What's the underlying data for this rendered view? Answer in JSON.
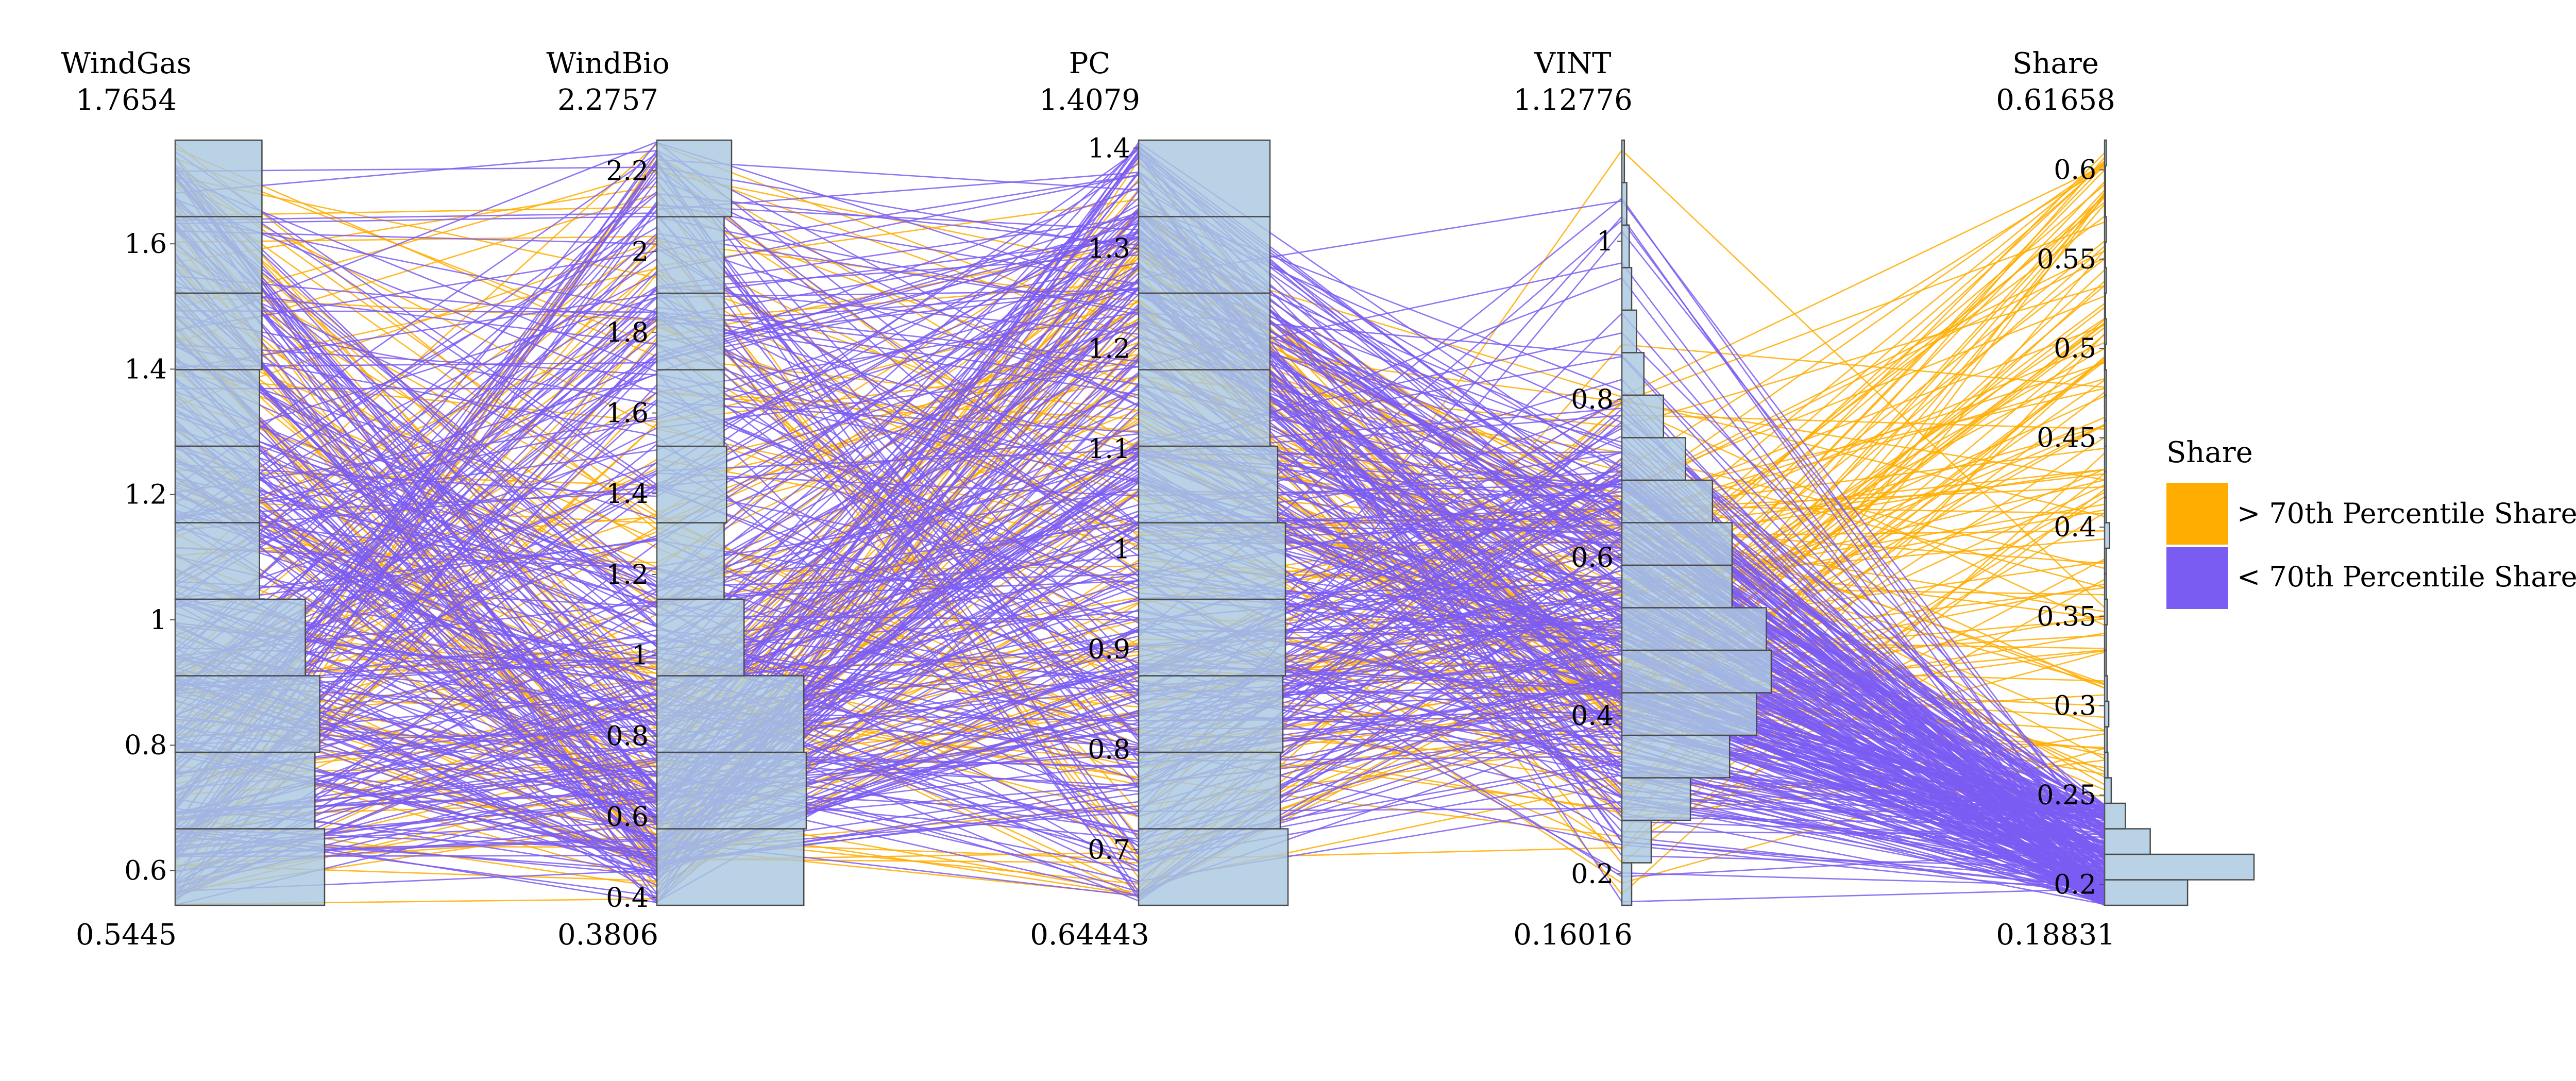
{
  "chart_data": {
    "type": "parallel_coordinates",
    "title": "",
    "axes": [
      {
        "name": "WindGas",
        "max_label": "1.7654",
        "min_label": "0.5445",
        "range": [
          0.5445,
          1.7654
        ],
        "ticks": [
          {
            "value": 0.6,
            "label": "0.6"
          },
          {
            "value": 0.8,
            "label": "0.8"
          },
          {
            "value": 1.0,
            "label": "1"
          },
          {
            "value": 1.2,
            "label": "1.2"
          },
          {
            "value": 1.4,
            "label": "1.4"
          },
          {
            "value": 1.6,
            "label": "1.6"
          }
        ],
        "histogram": [
          {
            "lo": 0.5445,
            "hi": 0.6666,
            "count": 62
          },
          {
            "lo": 0.6666,
            "hi": 0.7887,
            "count": 58
          },
          {
            "lo": 0.7887,
            "hi": 0.9108,
            "count": 60
          },
          {
            "lo": 0.9108,
            "hi": 1.0329,
            "count": 54
          },
          {
            "lo": 1.0329,
            "hi": 1.155,
            "count": 35
          },
          {
            "lo": 1.155,
            "hi": 1.2771,
            "count": 35
          },
          {
            "lo": 1.2771,
            "hi": 1.3992,
            "count": 35
          },
          {
            "lo": 1.3992,
            "hi": 1.5213,
            "count": 36
          },
          {
            "lo": 1.5213,
            "hi": 1.6434,
            "count": 36
          },
          {
            "lo": 1.6434,
            "hi": 1.7654,
            "count": 36
          }
        ]
      },
      {
        "name": "WindBio",
        "max_label": "2.2757",
        "min_label": "0.3806",
        "range": [
          0.3806,
          2.2757
        ],
        "ticks": [
          {
            "value": 0.4,
            "label": "0.4"
          },
          {
            "value": 0.6,
            "label": "0.6"
          },
          {
            "value": 0.8,
            "label": "0.8"
          },
          {
            "value": 1.0,
            "label": "1"
          },
          {
            "value": 1.2,
            "label": "1.2"
          },
          {
            "value": 1.4,
            "label": "1.4"
          },
          {
            "value": 1.6,
            "label": "1.6"
          },
          {
            "value": 1.8,
            "label": "1.8"
          },
          {
            "value": 2.0,
            "label": "2"
          },
          {
            "value": 2.2,
            "label": "2.2"
          }
        ],
        "histogram": [
          {
            "lo": 0.3806,
            "hi": 0.5701,
            "count": 59
          },
          {
            "lo": 0.5701,
            "hi": 0.7596,
            "count": 60
          },
          {
            "lo": 0.7596,
            "hi": 0.9491,
            "count": 59
          },
          {
            "lo": 0.9491,
            "hi": 1.1386,
            "count": 35
          },
          {
            "lo": 1.1386,
            "hi": 1.3281,
            "count": 27
          },
          {
            "lo": 1.3281,
            "hi": 1.5176,
            "count": 28
          },
          {
            "lo": 1.5176,
            "hi": 1.7071,
            "count": 27
          },
          {
            "lo": 1.7071,
            "hi": 1.8966,
            "count": 27
          },
          {
            "lo": 1.8966,
            "hi": 2.0861,
            "count": 27
          },
          {
            "lo": 2.0861,
            "hi": 2.2757,
            "count": 30
          }
        ]
      },
      {
        "name": "PC",
        "max_label": "1.4079",
        "min_label": "0.64443",
        "range": [
          0.64443,
          1.4079
        ],
        "ticks": [
          {
            "value": 0.7,
            "label": "0.7"
          },
          {
            "value": 0.8,
            "label": "0.8"
          },
          {
            "value": 0.9,
            "label": "0.9"
          },
          {
            "value": 1.0,
            "label": "1"
          },
          {
            "value": 1.1,
            "label": "1.1"
          },
          {
            "value": 1.2,
            "label": "1.2"
          },
          {
            "value": 1.3,
            "label": "1.3"
          },
          {
            "value": 1.4,
            "label": "1.4"
          }
        ],
        "histogram": [
          {
            "lo": 0.64443,
            "hi": 0.72078,
            "count": 58
          },
          {
            "lo": 0.72078,
            "hi": 0.79713,
            "count": 55
          },
          {
            "lo": 0.79713,
            "hi": 0.87348,
            "count": 56
          },
          {
            "lo": 0.87348,
            "hi": 0.94983,
            "count": 57
          },
          {
            "lo": 0.94983,
            "hi": 1.02618,
            "count": 57
          },
          {
            "lo": 1.02618,
            "hi": 1.10253,
            "count": 54
          },
          {
            "lo": 1.10253,
            "hi": 1.17888,
            "count": 51
          },
          {
            "lo": 1.17888,
            "hi": 1.25523,
            "count": 51
          },
          {
            "lo": 1.25523,
            "hi": 1.33158,
            "count": 51
          },
          {
            "lo": 1.33158,
            "hi": 1.4079,
            "count": 51
          }
        ]
      },
      {
        "name": "VINT",
        "max_label": "1.12776",
        "min_label": "0.16016",
        "range": [
          0.16016,
          1.12776
        ],
        "ticks": [
          {
            "value": 0.2,
            "label": "0.2"
          },
          {
            "value": 0.4,
            "label": "0.4"
          },
          {
            "value": 0.6,
            "label": "0.6"
          },
          {
            "value": 0.8,
            "label": "0.8"
          },
          {
            "value": 1.0,
            "label": "1"
          }
        ],
        "histogram": [
          {
            "lo": 0.16016,
            "hi": 0.21392,
            "count": 4
          },
          {
            "lo": 0.21392,
            "hi": 0.26768,
            "count": 12
          },
          {
            "lo": 0.26768,
            "hi": 0.32144,
            "count": 28
          },
          {
            "lo": 0.32144,
            "hi": 0.3752,
            "count": 44
          },
          {
            "lo": 0.3752,
            "hi": 0.42896,
            "count": 55
          },
          {
            "lo": 0.42896,
            "hi": 0.48272,
            "count": 61
          },
          {
            "lo": 0.48272,
            "hi": 0.53648,
            "count": 59
          },
          {
            "lo": 0.53648,
            "hi": 0.59024,
            "count": 45
          },
          {
            "lo": 0.59024,
            "hi": 0.644,
            "count": 45
          },
          {
            "lo": 0.644,
            "hi": 0.69776,
            "count": 37
          },
          {
            "lo": 0.69776,
            "hi": 0.75152,
            "count": 26
          },
          {
            "lo": 0.75152,
            "hi": 0.80528,
            "count": 17
          },
          {
            "lo": 0.80528,
            "hi": 0.85904,
            "count": 9
          },
          {
            "lo": 0.85904,
            "hi": 0.9128,
            "count": 6
          },
          {
            "lo": 0.9128,
            "hi": 0.96656,
            "count": 4
          },
          {
            "lo": 0.96656,
            "hi": 1.02032,
            "count": 3
          },
          {
            "lo": 1.02032,
            "hi": 1.07408,
            "count": 2
          },
          {
            "lo": 1.07408,
            "hi": 1.12776,
            "count": 1
          }
        ]
      },
      {
        "name": "Share",
        "max_label": "0.61658",
        "min_label": "0.18831",
        "range": [
          0.18831,
          0.61658
        ],
        "ticks": [
          {
            "value": 0.2,
            "label": "0.2"
          },
          {
            "value": 0.25,
            "label": "0.25"
          },
          {
            "value": 0.3,
            "label": "0.3"
          },
          {
            "value": 0.35,
            "label": "0.35"
          },
          {
            "value": 0.4,
            "label": "0.4"
          },
          {
            "value": 0.45,
            "label": "0.45"
          },
          {
            "value": 0.5,
            "label": "0.5"
          },
          {
            "value": 0.55,
            "label": "0.55"
          },
          {
            "value": 0.6,
            "label": "0.6"
          }
        ],
        "histogram": [
          {
            "lo": 0.18831,
            "hi": 0.20259,
            "count": 100
          },
          {
            "lo": 0.20259,
            "hi": 0.21686,
            "count": 180
          },
          {
            "lo": 0.21686,
            "hi": 0.23114,
            "count": 55
          },
          {
            "lo": 0.23114,
            "hi": 0.24541,
            "count": 25
          },
          {
            "lo": 0.24541,
            "hi": 0.25969,
            "count": 8
          },
          {
            "lo": 0.25969,
            "hi": 0.27396,
            "count": 4
          },
          {
            "lo": 0.27396,
            "hi": 0.28824,
            "count": 3
          },
          {
            "lo": 0.28824,
            "hi": 0.30251,
            "count": 5
          },
          {
            "lo": 0.30251,
            "hi": 0.31679,
            "count": 3
          },
          {
            "lo": 0.31679,
            "hi": 0.33106,
            "count": 2
          },
          {
            "lo": 0.33106,
            "hi": 0.34534,
            "count": 2
          },
          {
            "lo": 0.34534,
            "hi": 0.35961,
            "count": 3
          },
          {
            "lo": 0.35961,
            "hi": 0.37389,
            "count": 2
          },
          {
            "lo": 0.37389,
            "hi": 0.38816,
            "count": 2
          },
          {
            "lo": 0.38816,
            "hi": 0.40244,
            "count": 6
          },
          {
            "lo": 0.40244,
            "hi": 0.41671,
            "count": 2
          },
          {
            "lo": 0.41671,
            "hi": 0.43099,
            "count": 2
          },
          {
            "lo": 0.43099,
            "hi": 0.44526,
            "count": 2
          },
          {
            "lo": 0.44526,
            "hi": 0.45954,
            "count": 2
          },
          {
            "lo": 0.45954,
            "hi": 0.47381,
            "count": 2
          },
          {
            "lo": 0.47381,
            "hi": 0.48809,
            "count": 2
          },
          {
            "lo": 0.48809,
            "hi": 0.50236,
            "count": 1
          },
          {
            "lo": 0.50236,
            "hi": 0.51664,
            "count": 2
          },
          {
            "lo": 0.51664,
            "hi": 0.53091,
            "count": 1
          },
          {
            "lo": 0.53091,
            "hi": 0.54519,
            "count": 2
          },
          {
            "lo": 0.54519,
            "hi": 0.55946,
            "count": 1
          },
          {
            "lo": 0.55946,
            "hi": 0.57374,
            "count": 2
          },
          {
            "lo": 0.57374,
            "hi": 0.58801,
            "count": 1
          },
          {
            "lo": 0.58801,
            "hi": 0.60229,
            "count": 1
          },
          {
            "lo": 0.60229,
            "hi": 0.61658,
            "count": 2
          }
        ]
      }
    ],
    "series": [
      {
        "name": "> 70th Percentile Share",
        "color": "#FFAD00",
        "line_count": 130
      },
      {
        "name": "< 70th Percentile Share",
        "color": "#7B5CF2",
        "line_count": 300
      }
    ],
    "histogram_fill": "#A9C8DF",
    "histogram_stroke": "#4A4A4A",
    "legend": {
      "title": "Share",
      "position": "right",
      "entries": [
        {
          "label": "> 70th Percentile Share",
          "color": "#FFAD00"
        },
        {
          "label": "< 70th Percentile Share",
          "color": "#7B5CF2"
        }
      ]
    }
  }
}
